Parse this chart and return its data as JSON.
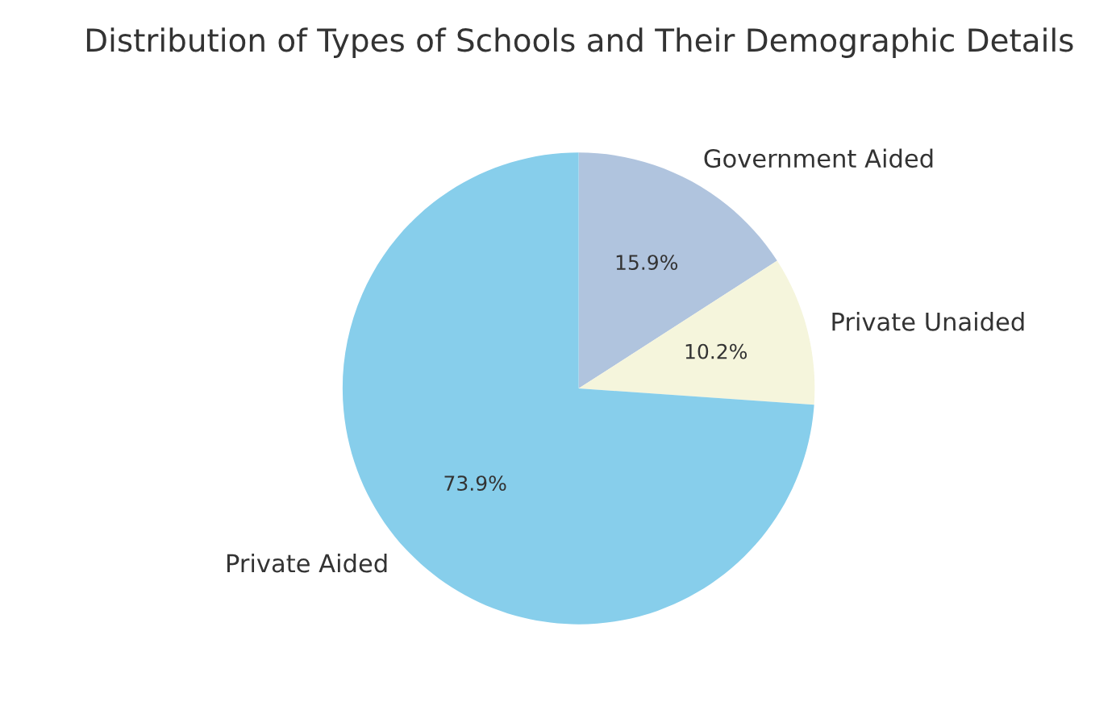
{
  "chart_data": {
    "type": "pie",
    "title": "Distribution of Types of Schools and Their Demographic Details",
    "categories": [
      "Government Aided",
      "Private Unaided",
      "Private Aided"
    ],
    "values": [
      15.9,
      10.2,
      73.9
    ],
    "colors": [
      "#b0c4de",
      "#f5f5dc",
      "#87ceeb"
    ],
    "value_labels": [
      "15.9%",
      "10.2%",
      "73.9%"
    ]
  }
}
